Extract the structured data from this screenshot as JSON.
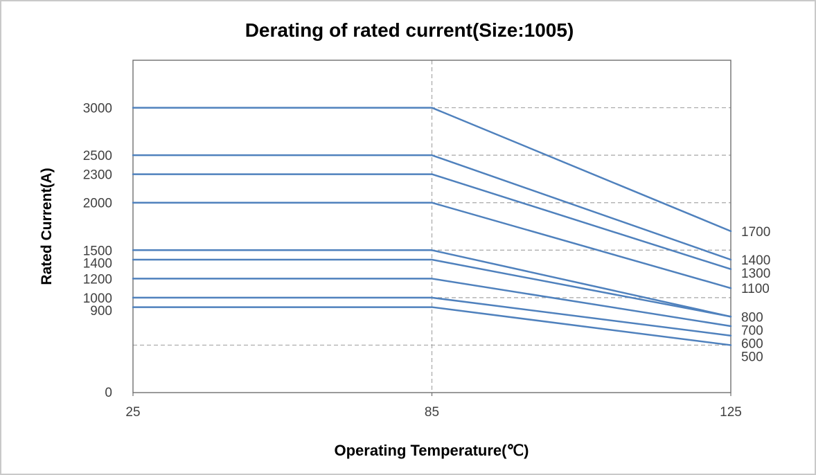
{
  "chart_data": {
    "type": "line",
    "title": "Derating of rated current(Size:1005)",
    "xlabel": "Operating Temperature(℃)",
    "ylabel": "Rated Current(A)",
    "x": [
      25,
      85,
      125
    ],
    "x_tick_labels": [
      "25",
      "85",
      "125"
    ],
    "ylim": [
      0,
      3500
    ],
    "y_gridline_step": 500,
    "origin_label": "0",
    "grid": true,
    "vertical_gridline_x": 85,
    "legend": "none",
    "line_color": "#4f81bd",
    "gridline_color": "#a6a6a6",
    "series": [
      {
        "name": "3000",
        "values": [
          3000,
          3000,
          1700
        ]
      },
      {
        "name": "2500",
        "values": [
          2500,
          2500,
          1400
        ]
      },
      {
        "name": "2300",
        "values": [
          2300,
          2300,
          1300
        ]
      },
      {
        "name": "2000",
        "values": [
          2000,
          2000,
          1100
        ]
      },
      {
        "name": "1500",
        "values": [
          1500,
          1500,
          800
        ]
      },
      {
        "name": "1400",
        "values": [
          1400,
          1400,
          800
        ]
      },
      {
        "name": "1200",
        "values": [
          1200,
          1200,
          700
        ]
      },
      {
        "name": "1000",
        "values": [
          1000,
          1000,
          600
        ]
      },
      {
        "name": "900",
        "values": [
          900,
          900,
          500
        ]
      }
    ],
    "left_labels": [
      "3000",
      "2500",
      "2300",
      "2000",
      "1500",
      "1400",
      "1200",
      "1000",
      "900"
    ],
    "right_labels": [
      "1700",
      "1400",
      "1300",
      "1100",
      "800",
      "700",
      "600",
      "500"
    ]
  }
}
